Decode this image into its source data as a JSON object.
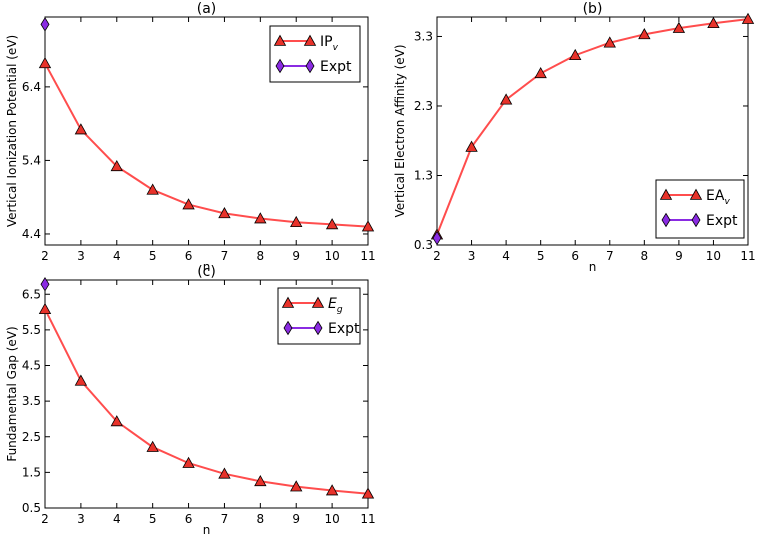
{
  "colors": {
    "series": "#ff4d4d",
    "marker": "#e8322a",
    "expt": "#8a2be2",
    "frame": "#000000"
  },
  "chart_data": [
    {
      "type": "line",
      "title": "(a)",
      "xlabel": "n",
      "ylabel": "Vertical Ionization Potential (eV)",
      "xlim": [
        2,
        11
      ],
      "ylim": [
        4.25,
        7.35
      ],
      "xticks": [
        2,
        3,
        4,
        5,
        6,
        7,
        8,
        9,
        10,
        11
      ],
      "yticks": [
        "4.4",
        "5.4",
        "6.4"
      ],
      "legend_position": "top-right",
      "series": [
        {
          "name": "IPv",
          "legend_main": "IP",
          "legend_sub": "v",
          "x": [
            2,
            3,
            4,
            5,
            6,
            7,
            8,
            9,
            10,
            11
          ],
          "y": [
            6.72,
            5.82,
            5.32,
            5.0,
            4.8,
            4.68,
            4.61,
            4.56,
            4.53,
            4.5
          ]
        },
        {
          "name": "Expt",
          "legend_main": "Expt",
          "legend_sub": "",
          "x": [
            2
          ],
          "y": [
            7.25
          ]
        }
      ]
    },
    {
      "type": "line",
      "title": "(b)",
      "xlabel": "n",
      "ylabel": "Vertical Electron Affinity (eV)",
      "xlim": [
        2,
        11
      ],
      "ylim": [
        0.3,
        3.58
      ],
      "xticks": [
        2,
        3,
        4,
        5,
        6,
        7,
        8,
        9,
        10,
        11
      ],
      "yticks": [
        "0.3",
        "1.3",
        "2.3",
        "3.3"
      ],
      "legend_position": "bottom-right",
      "series": [
        {
          "name": "EAv",
          "legend_main": "EA",
          "legend_sub": "v",
          "x": [
            2,
            3,
            4,
            5,
            6,
            7,
            8,
            9,
            10,
            11
          ],
          "y": [
            0.45,
            1.71,
            2.39,
            2.77,
            3.03,
            3.21,
            3.33,
            3.42,
            3.49,
            3.55
          ]
        },
        {
          "name": "Expt",
          "legend_main": "Expt",
          "legend_sub": "",
          "x": [
            2
          ],
          "y": [
            0.4
          ]
        }
      ]
    },
    {
      "type": "line",
      "title": "(c)",
      "xlabel": "n",
      "ylabel": "Fundamental Gap (eV)",
      "xlim": [
        2,
        11
      ],
      "ylim": [
        0.5,
        6.9
      ],
      "xticks": [
        2,
        3,
        4,
        5,
        6,
        7,
        8,
        9,
        10,
        11
      ],
      "yticks": [
        "0.5",
        "1.5",
        "2.5",
        "3.5",
        "4.5",
        "5.5",
        "6.5"
      ],
      "legend_position": "top-right",
      "series": [
        {
          "name": "Eg",
          "legend_main": "E",
          "legend_sub": "g",
          "x": [
            2,
            3,
            4,
            5,
            6,
            7,
            8,
            9,
            10,
            11
          ],
          "y": [
            6.08,
            4.07,
            2.93,
            2.21,
            1.76,
            1.46,
            1.25,
            1.1,
            0.99,
            0.9
          ]
        },
        {
          "name": "Expt",
          "legend_main": "Expt",
          "legend_sub": "",
          "x": [
            2
          ],
          "y": [
            6.78
          ]
        }
      ]
    }
  ]
}
